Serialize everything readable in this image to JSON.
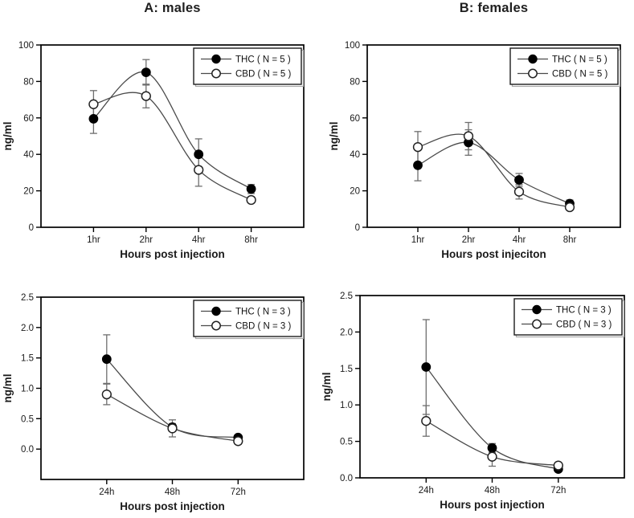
{
  "figure": {
    "background": "#ffffff",
    "description": "Four-panel line figure of THC and CBD plasma concentration (ng/ml) over hours post injection"
  },
  "colors": {
    "axis": "#000000",
    "line": "#4a4a4a",
    "error_bar": "#6e6e6e",
    "text": "#1a1a1a",
    "marker_filled": "#000000",
    "marker_open_fill": "#ffffff",
    "marker_open_stroke": "#222222",
    "legend_border": "#1c1c1c",
    "legend_shadow": "#a8a8a8",
    "legend_fill": "#ffffff"
  },
  "chart_data": [
    {
      "id": "top-left",
      "type": "line",
      "title": "A: males",
      "ylabel": "ng/ml",
      "xlabel": "Hours post injection",
      "categories": [
        "1hr",
        "2hr",
        "4hr",
        "8hr"
      ],
      "ylim": [
        0,
        100
      ],
      "yticks": [
        0,
        20,
        40,
        60,
        80,
        100
      ],
      "ytick_labels": [
        "0",
        "20",
        "40",
        "60",
        "80",
        "100"
      ],
      "grid": false,
      "legend_position": "top-right",
      "series": [
        {
          "name": "THC ( N = 5 )",
          "marker": "filled-circle",
          "values": [
            59.5,
            85,
            40,
            21
          ],
          "errors": [
            8,
            7,
            8.5,
            2.5
          ]
        },
        {
          "name": "CBD ( N = 5 )",
          "marker": "open-circle",
          "values": [
            67.5,
            72,
            31.5,
            15
          ],
          "errors": [
            7.5,
            6.5,
            9,
            1.5
          ]
        }
      ]
    },
    {
      "id": "top-right",
      "type": "line",
      "title": "B: females",
      "ylabel": "ng/ml",
      "xlabel": "Hours post injeciton",
      "categories": [
        "1hr",
        "2hr",
        "4hr",
        "8hr"
      ],
      "ylim": [
        0,
        100
      ],
      "yticks": [
        0,
        20,
        40,
        60,
        80,
        100
      ],
      "ytick_labels": [
        "0",
        "20",
        "40",
        "60",
        "80",
        "100"
      ],
      "grid": false,
      "legend_position": "top-right",
      "series": [
        {
          "name": "THC ( N = 5 )",
          "marker": "filled-circle",
          "values": [
            34,
            46.5,
            26,
            13
          ],
          "errors": [
            8.5,
            7,
            3.5,
            2
          ]
        },
        {
          "name": "CBD ( N = 5 )",
          "marker": "open-circle",
          "values": [
            44,
            50,
            19.5,
            11
          ],
          "errors": [
            8.5,
            7.5,
            4,
            1.5
          ]
        }
      ]
    },
    {
      "id": "bottom-left",
      "type": "line",
      "title": "",
      "ylabel": "ng/ml",
      "xlabel": "Hours post injection",
      "categories": [
        "24h",
        "48h",
        "72h"
      ],
      "ylim": [
        -0.5,
        2.5
      ],
      "yticks": [
        0,
        0.5,
        1,
        1.5,
        2,
        2.5
      ],
      "ytick_labels": [
        "0.0",
        "0.5",
        "1.0",
        "1.5",
        "2.0",
        "2.5"
      ],
      "grid": false,
      "legend_position": "top-right",
      "series": [
        {
          "name": "THC ( N = 3 )",
          "marker": "filled-circle",
          "values": [
            1.48,
            0.36,
            0.19
          ],
          "errors": [
            0.4,
            0.06,
            0.04
          ]
        },
        {
          "name": "CBD ( N = 3 )",
          "marker": "open-circle",
          "values": [
            0.9,
            0.34,
            0.13
          ],
          "errors": [
            0.17,
            0.14,
            0.05
          ]
        }
      ]
    },
    {
      "id": "bottom-right",
      "type": "line",
      "title": "",
      "ylabel": "ng/ml",
      "xlabel": "Hours post injection",
      "categories": [
        "24h",
        "48h",
        "72h"
      ],
      "ylim": [
        0,
        2.5
      ],
      "yticks": [
        0,
        0.5,
        1,
        1.5,
        2,
        2.5
      ],
      "ytick_labels": [
        "0.0",
        "0.5",
        "1.0",
        "1.5",
        "2.0",
        "2.5"
      ],
      "grid": false,
      "legend_position": "top-right",
      "series": [
        {
          "name": "THC ( N = 3 )",
          "marker": "filled-circle",
          "values": [
            1.52,
            0.41,
            0.12
          ],
          "errors": [
            0.65,
            0.06,
            0.03
          ]
        },
        {
          "name": "CBD ( N = 3 )",
          "marker": "open-circle",
          "values": [
            0.78,
            0.29,
            0.17
          ],
          "errors": [
            0.21,
            0.13,
            0.03
          ]
        }
      ]
    }
  ]
}
